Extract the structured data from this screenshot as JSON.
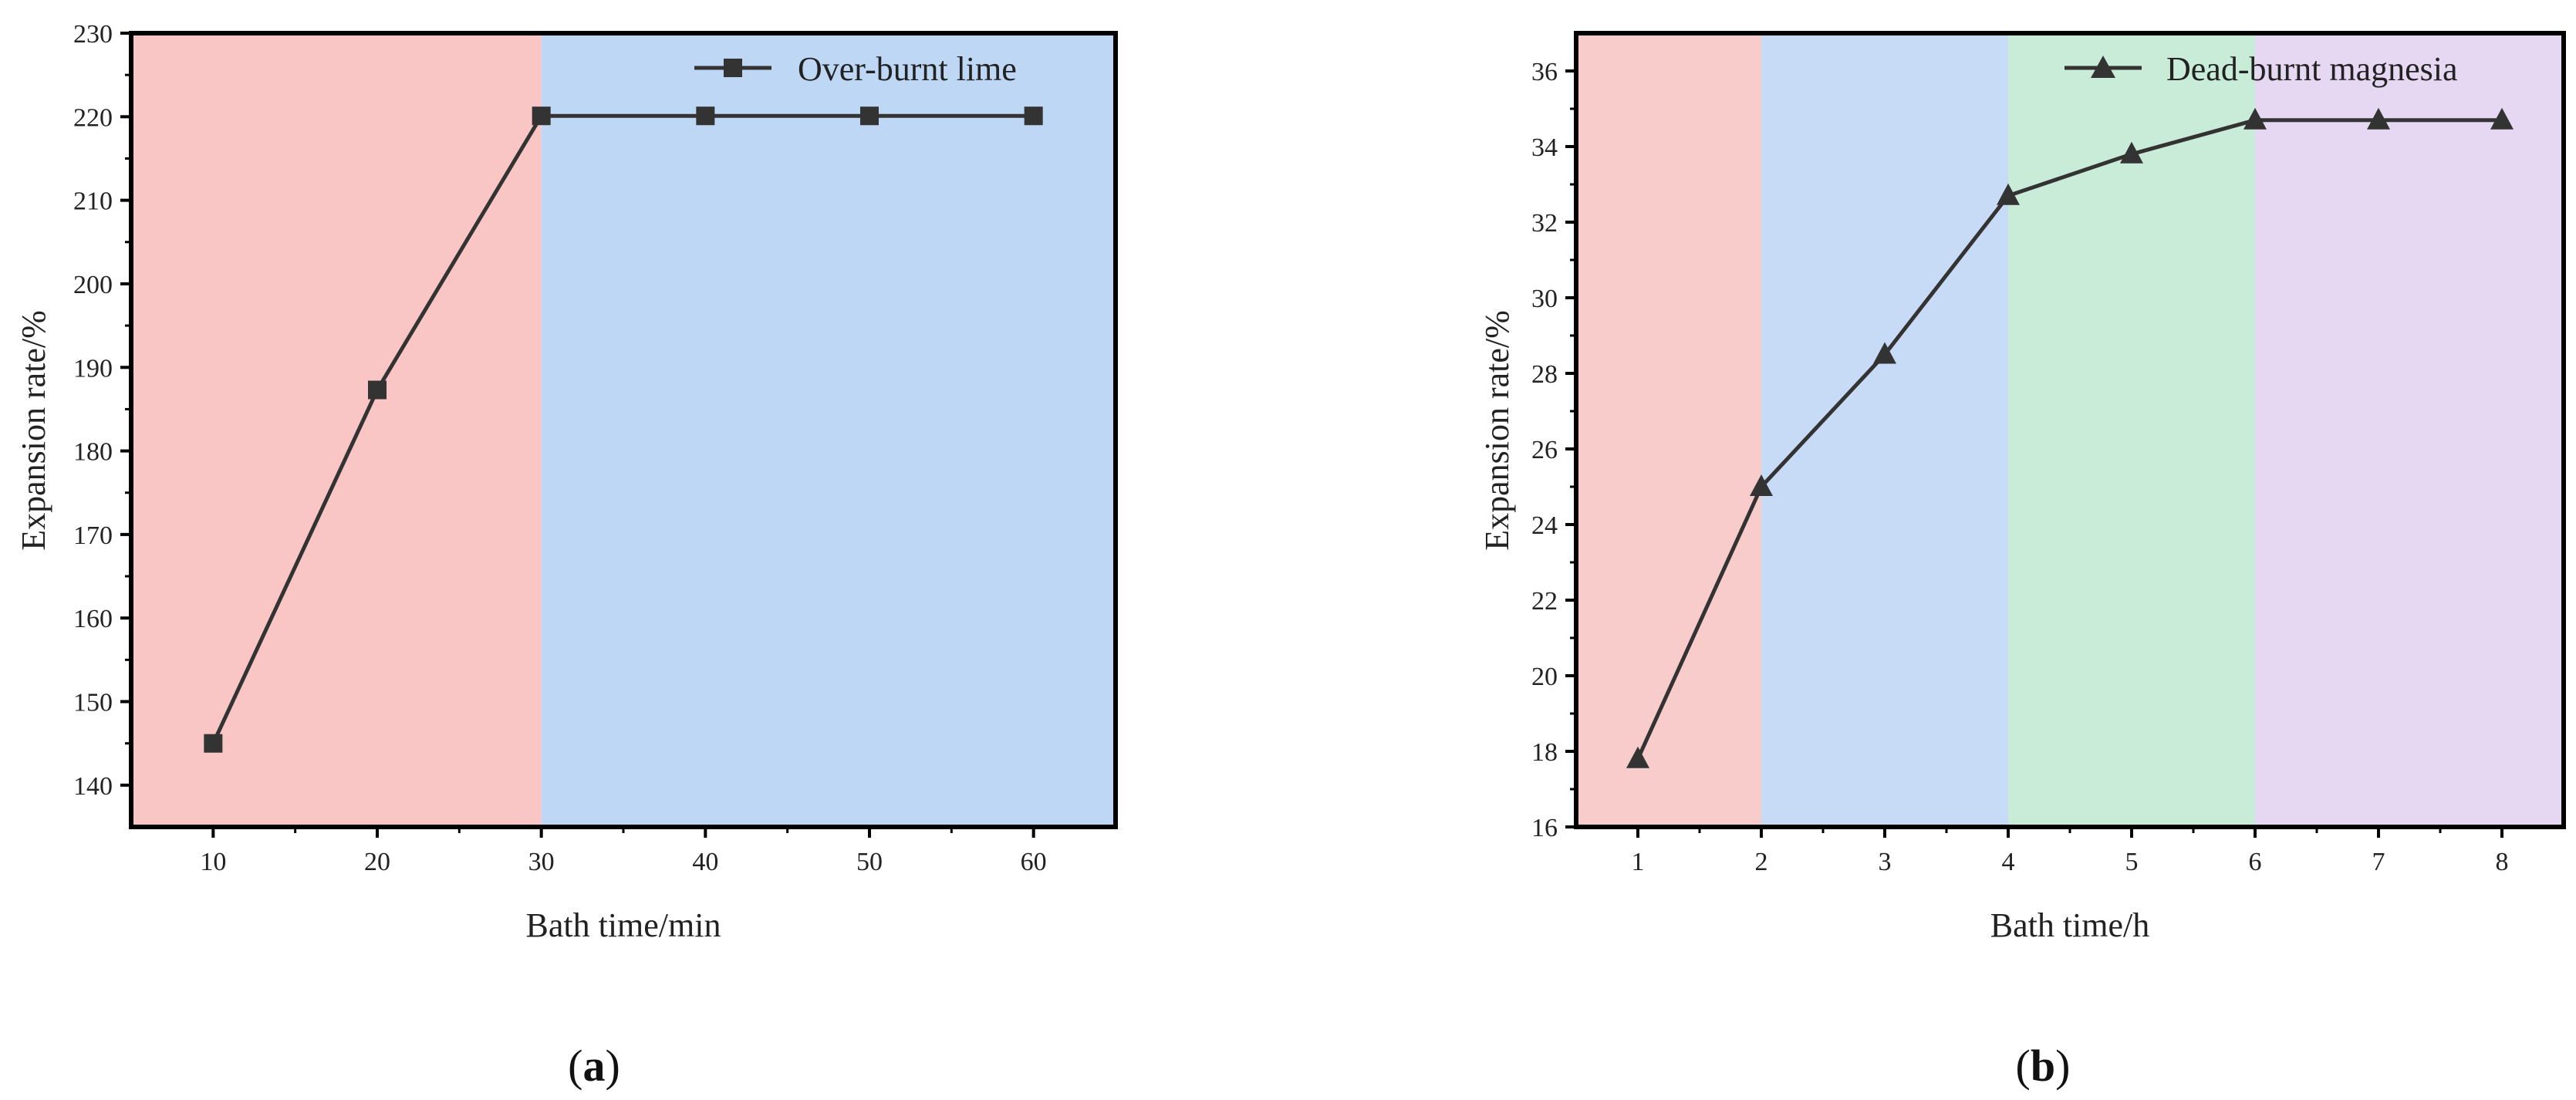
{
  "chart_data": [
    {
      "type": "line",
      "caption_letter": "a",
      "xlabel": "Bath time/min",
      "ylabel": "Expansion rate/%",
      "xlim": [
        5,
        65
      ],
      "ylim": [
        135,
        230
      ],
      "xticks": [
        10,
        20,
        30,
        40,
        50,
        60
      ],
      "yticks": [
        140,
        150,
        160,
        170,
        180,
        190,
        200,
        210,
        220,
        230
      ],
      "grid": false,
      "legend_position": "top-right",
      "regions": [
        {
          "from": 5,
          "to": 30,
          "color": "#f9c5c5"
        },
        {
          "from": 30,
          "to": 65,
          "color": "#bdd7f5"
        }
      ],
      "series": [
        {
          "name": "Over-burnt lime",
          "marker": "square",
          "color": "#333333",
          "x": [
            10,
            20,
            30,
            40,
            50,
            60
          ],
          "values": [
            145,
            187.3,
            220.1,
            220.1,
            220.1,
            220.1
          ]
        }
      ]
    },
    {
      "type": "line",
      "caption_letter": "b",
      "xlabel": "Bath time/h",
      "ylabel": "Expansion rate/%",
      "xlim": [
        0.5,
        8.5
      ],
      "ylim": [
        16,
        37
      ],
      "xticks": [
        1,
        2,
        3,
        4,
        5,
        6,
        7,
        8
      ],
      "yticks": [
        16,
        18,
        20,
        22,
        24,
        26,
        28,
        30,
        32,
        34,
        36
      ],
      "grid": false,
      "legend_position": "top-right",
      "regions": [
        {
          "from": 0.5,
          "to": 2,
          "color": "#f9cccc"
        },
        {
          "from": 2,
          "to": 4,
          "color": "#c7dbf6"
        },
        {
          "from": 4,
          "to": 6,
          "color": "#c9ecd9"
        },
        {
          "from": 6,
          "to": 8.5,
          "color": "#e6d8f2"
        }
      ],
      "series": [
        {
          "name": "Dead-burnt magnesia",
          "marker": "triangle",
          "color": "#333333",
          "x": [
            1,
            2,
            3,
            4,
            5,
            6,
            7,
            8
          ],
          "values": [
            17.8,
            25.0,
            28.5,
            32.7,
            33.8,
            34.7,
            34.7,
            34.7
          ]
        }
      ]
    }
  ]
}
